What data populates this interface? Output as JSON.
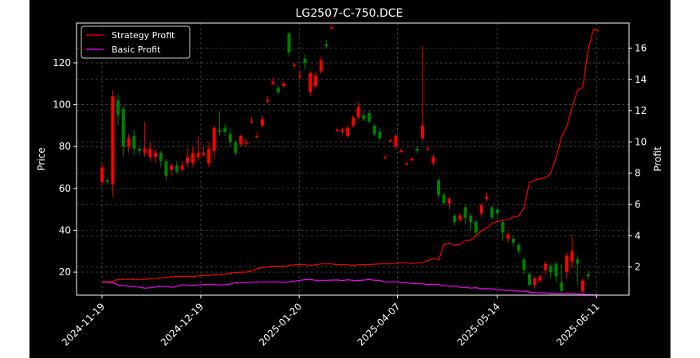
{
  "chart_data": {
    "type": "candlestick",
    "title": "LG2507-C-750.DCE",
    "xlabel": "",
    "ylabel": "Price",
    "ylabel_right": "Profit",
    "xtick_labels": [
      "2024-11-19",
      "2024-12-19",
      "2025-01-20",
      "2025-04-07",
      "2025-05-14",
      "2025-06-11"
    ],
    "ylim": [
      9,
      139
    ],
    "yticks": [
      20,
      40,
      60,
      80,
      100,
      120
    ],
    "ylim_right": [
      0.2,
      17.6
    ],
    "yticks_right": [
      2,
      4,
      6,
      8,
      10,
      12,
      14,
      16
    ],
    "grid": true,
    "legend_position": "top-left",
    "background": "#000000",
    "colors": {
      "up": "#ff0000",
      "down": "#008000",
      "strategy": "#ff0000",
      "basic": "#ff00ff",
      "text": "#ffffff"
    },
    "candles": [
      [
        63,
        70,
        72,
        61
      ],
      [
        64,
        63,
        65,
        62
      ],
      [
        62,
        104,
        107,
        56
      ],
      [
        102,
        95,
        105,
        90
      ],
      [
        98,
        80,
        100,
        75
      ],
      [
        80,
        84,
        86,
        77
      ],
      [
        85,
        79,
        88,
        76
      ],
      [
        79,
        78,
        80,
        76
      ],
      [
        77,
        79,
        92,
        75
      ],
      [
        75,
        79,
        82,
        73
      ],
      [
        75,
        77,
        79,
        72
      ],
      [
        77,
        73,
        78,
        70
      ],
      [
        73,
        66,
        74,
        64
      ],
      [
        69,
        71,
        72,
        66
      ],
      [
        71,
        68,
        73,
        67
      ],
      [
        69,
        71,
        73,
        68
      ],
      [
        72,
        75,
        79,
        70
      ],
      [
        72,
        77,
        80,
        70
      ],
      [
        75,
        77,
        85,
        73
      ],
      [
        76,
        77,
        80,
        75
      ],
      [
        72,
        79,
        82,
        70
      ],
      [
        78,
        89,
        90,
        74
      ],
      [
        88,
        87,
        97,
        85
      ],
      [
        89,
        87,
        91,
        85
      ],
      [
        86,
        82,
        89,
        80
      ],
      [
        82,
        77,
        83,
        76
      ],
      [
        81,
        85,
        86,
        80
      ],
      [
        82,
        82,
        84,
        80
      ],
      [
        92,
        92,
        94,
        91
      ],
      [
        85,
        85,
        87,
        84
      ],
      [
        90,
        93,
        95,
        89
      ],
      [
        102,
        102,
        104,
        101
      ],
      [
        110,
        111,
        113,
        109
      ],
      [
        108,
        106,
        109,
        105
      ],
      [
        109,
        110,
        111,
        108
      ],
      [
        134,
        125,
        135,
        123
      ],
      [
        119,
        119,
        120,
        118
      ],
      [
        114,
        114,
        116,
        112
      ],
      [
        122,
        120,
        124,
        117
      ],
      [
        106,
        115,
        116,
        104
      ],
      [
        109,
        114,
        116,
        108
      ],
      [
        116,
        121,
        123,
        115
      ],
      [
        129,
        128,
        131,
        127
      ],
      [
        137,
        137,
        138,
        136
      ],
      [
        88,
        88,
        89,
        87
      ],
      [
        87,
        88,
        89,
        86
      ],
      [
        85,
        89,
        90,
        84
      ],
      [
        90,
        94,
        95,
        89
      ],
      [
        94,
        99,
        101,
        93
      ],
      [
        95,
        93,
        97,
        92
      ],
      [
        96,
        92,
        97,
        91
      ],
      [
        90,
        86,
        91,
        85
      ],
      [
        87,
        84,
        89,
        83
      ],
      [
        75,
        75,
        76,
        74
      ],
      [
        83,
        83,
        84,
        82
      ],
      [
        80,
        85,
        86,
        79
      ],
      [
        78,
        78,
        79,
        77
      ],
      [
        72,
        72,
        73,
        71
      ],
      [
        74,
        74,
        75,
        73
      ],
      [
        79,
        78,
        80,
        77
      ],
      [
        84,
        90,
        128,
        83
      ],
      [
        79,
        79,
        80,
        78
      ],
      [
        72,
        75,
        76,
        71
      ],
      [
        64,
        57,
        65,
        55
      ],
      [
        57,
        53,
        58,
        52
      ],
      [
        53,
        55,
        56,
        50
      ],
      [
        47,
        44,
        48,
        42
      ],
      [
        45,
        47,
        48,
        44
      ],
      [
        51,
        46,
        52,
        43
      ],
      [
        47,
        44,
        48,
        40
      ],
      [
        44,
        39,
        45,
        38
      ],
      [
        48,
        52,
        53,
        46
      ],
      [
        55,
        56,
        58,
        54
      ],
      [
        51,
        46,
        52,
        45
      ],
      [
        50,
        48,
        51,
        44
      ],
      [
        44,
        39,
        45,
        35
      ],
      [
        36,
        38,
        39,
        34
      ],
      [
        36,
        34,
        37,
        32
      ],
      [
        33,
        30,
        34,
        29
      ],
      [
        26,
        21,
        27,
        19
      ],
      [
        19,
        14,
        20,
        13
      ],
      [
        14,
        17,
        18,
        12
      ],
      [
        16,
        18,
        19,
        15
      ],
      [
        21,
        24,
        25,
        19
      ],
      [
        23,
        20,
        24,
        17
      ],
      [
        24,
        18,
        25,
        15
      ],
      [
        15,
        11,
        24,
        10
      ],
      [
        20,
        28,
        29,
        17
      ],
      [
        25,
        30,
        38,
        22
      ],
      [
        26,
        24,
        28,
        14
      ],
      [
        11,
        16,
        17,
        10
      ],
      [
        19,
        18,
        21,
        16
      ]
    ],
    "series": [
      {
        "name": "Strategy Profit",
        "x": [
          0,
          0.4,
          0.8,
          1,
          1.4,
          2,
          2.4,
          3,
          4,
          5,
          6,
          7,
          8,
          9,
          10,
          11,
          12,
          13,
          14,
          15,
          16,
          17,
          18,
          19,
          20,
          21,
          22,
          23,
          24,
          25,
          26,
          27,
          28,
          29,
          30,
          31,
          32,
          33,
          34,
          35,
          36,
          37,
          38,
          39,
          40,
          41,
          42,
          43,
          44,
          45,
          46,
          47,
          48,
          49,
          50,
          51,
          52,
          53,
          54,
          55,
          56,
          57,
          58,
          59,
          60,
          61,
          62,
          63,
          64,
          65,
          66,
          67,
          68,
          69,
          70,
          71,
          72,
          73,
          74,
          75,
          76,
          77,
          78,
          79,
          80,
          81,
          82,
          83,
          84,
          85,
          86,
          87,
          88,
          89,
          90,
          91,
          92,
          93
        ],
        "values": [
          1.05,
          1.07,
          1.05,
          1.05,
          1.05,
          1.05,
          1.15,
          1.2,
          1.2,
          1.2,
          1.2,
          1.2,
          1.2,
          1.25,
          1.28,
          1.3,
          1.33,
          1.37,
          1.4,
          1.4,
          1.4,
          1.4,
          1.42,
          1.45,
          1.47,
          1.5,
          1.5,
          1.55,
          1.6,
          1.65,
          1.67,
          1.67,
          1.75,
          1.9,
          1.95,
          2.0,
          2.05,
          2.05,
          2.05,
          2.1,
          2.15,
          2.15,
          2.15,
          2.1,
          2.15,
          2.2,
          2.2,
          2.2,
          2.15,
          2.15,
          2.15,
          2.1,
          2.15,
          2.15,
          2.15,
          2.18,
          2.2,
          2.2,
          2.2,
          2.25,
          2.3,
          2.25,
          2.22,
          2.25,
          2.3,
          2.4,
          2.55,
          2.45,
          3.45,
          3.5,
          3.4,
          3.45,
          3.7,
          3.7,
          4.0,
          4.3,
          4.5,
          4.8,
          4.9,
          5.0,
          5.0,
          5.2,
          5.25,
          5.8,
          7.4,
          7.55,
          7.65,
          7.7,
          8.0,
          9.0,
          10.3,
          11.0,
          12.2,
          13.3,
          13.5,
          15.9,
          17.2,
          17.1
        ]
      },
      {
        "name": "Basic Profit",
        "x": [
          0,
          1,
          2,
          3,
          4,
          5,
          6,
          7,
          8,
          9,
          10,
          11,
          12,
          13,
          14,
          15,
          16,
          17,
          18,
          19,
          20,
          21,
          22,
          23,
          24,
          25,
          26,
          27,
          28,
          29,
          30,
          31,
          32,
          33,
          34,
          35,
          36,
          37,
          38,
          39,
          40,
          41,
          42,
          43,
          44,
          45,
          46,
          47,
          48,
          49,
          50,
          51,
          52,
          53,
          54,
          55,
          56,
          57,
          58,
          59,
          60,
          61,
          62,
          63,
          64,
          65,
          66,
          67,
          68,
          69,
          70,
          71,
          72,
          73,
          74,
          75,
          76,
          77,
          78,
          79,
          80,
          81,
          82,
          83,
          84,
          85,
          86,
          87,
          88,
          89,
          90,
          91,
          92,
          93
        ],
        "values": [
          1.05,
          1.02,
          1.0,
          0.85,
          0.8,
          0.78,
          0.75,
          0.7,
          0.65,
          0.67,
          0.72,
          0.75,
          0.75,
          0.7,
          0.75,
          0.85,
          0.85,
          0.82,
          0.85,
          0.88,
          0.9,
          0.88,
          0.85,
          0.87,
          0.9,
          1.0,
          1.0,
          1.0,
          1.03,
          1.05,
          1.03,
          1.05,
          1.05,
          1.04,
          1.02,
          1.04,
          1.1,
          1.15,
          1.18,
          1.2,
          1.15,
          1.15,
          1.15,
          1.16,
          1.17,
          1.13,
          1.18,
          1.15,
          1.14,
          1.16,
          1.2,
          1.15,
          1.15,
          1.03,
          1.05,
          1.05,
          1.02,
          1.0,
          0.95,
          0.93,
          0.92,
          0.88,
          0.9,
          0.88,
          0.8,
          0.78,
          0.78,
          0.7,
          0.7,
          0.65,
          0.68,
          0.6,
          0.62,
          0.6,
          0.55,
          0.53,
          0.5,
          0.5,
          0.45,
          0.45,
          0.4,
          0.37,
          0.35,
          0.35,
          0.3,
          0.28,
          0.28,
          0.3,
          0.3,
          0.28,
          0.25,
          0.23,
          0.22,
          0.2
        ]
      }
    ]
  }
}
